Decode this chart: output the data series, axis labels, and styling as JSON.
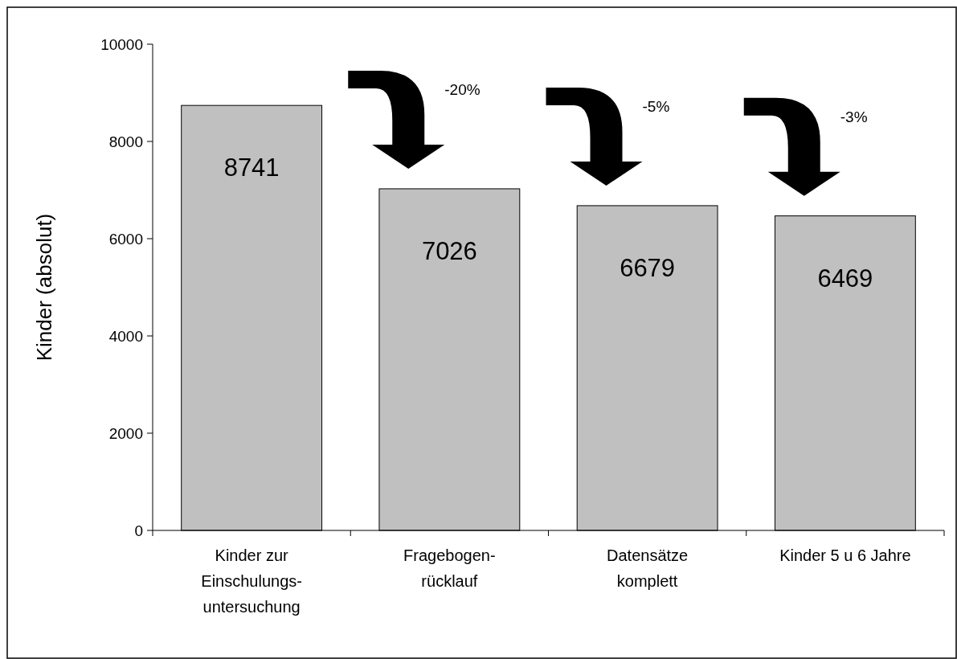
{
  "chart_data": {
    "type": "bar",
    "ylabel": "Kinder (absolut)",
    "categories": [
      "Kinder zur\nEinschulungs-\nuntersuchung",
      "Fragebogen-\nrücklauf",
      "Datensätze\nkomplett",
      "Kinder 5 u 6 Jahre"
    ],
    "values": [
      8741,
      7026,
      6679,
      6469
    ],
    "color": "#c0c0c0",
    "data_labels": true,
    "ylim": [
      0,
      10000
    ],
    "yticks": [
      0,
      2000,
      4000,
      6000,
      8000,
      10000
    ],
    "annotations": [
      "-20%",
      "-5%",
      "-3%"
    ],
    "grid": false
  }
}
